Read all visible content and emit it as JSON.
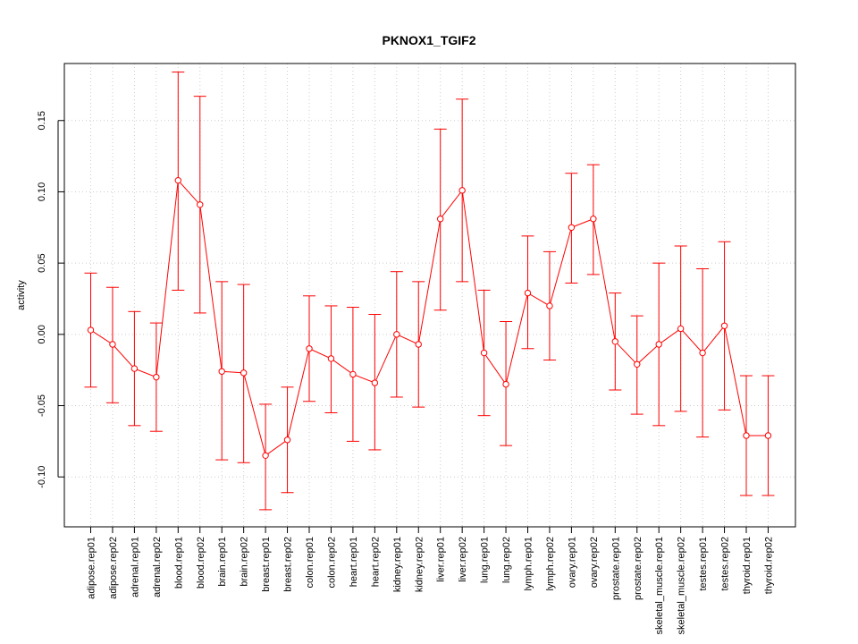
{
  "chart_data": {
    "type": "line",
    "title": "PKNOX1_TGIF2",
    "xlabel": "",
    "ylabel": "activity",
    "ylim": [
      -0.135,
      0.19
    ],
    "yticks": [
      -0.1,
      -0.05,
      0.0,
      0.05,
      0.1,
      0.15
    ],
    "ytick_labels": [
      "-0.10",
      "-0.05",
      "0.00",
      "0.05",
      "0.10",
      "0.15"
    ],
    "grid": true,
    "color": "#ff0000",
    "categories": [
      "adipose.rep01",
      "adipose.rep02",
      "adrenal.rep01",
      "adrenal.rep02",
      "blood.rep01",
      "blood.rep02",
      "brain.rep01",
      "brain.rep02",
      "breast.rep01",
      "breast.rep02",
      "colon.rep01",
      "colon.rep02",
      "heart.rep01",
      "heart.rep02",
      "kidney.rep01",
      "kidney.rep02",
      "liver.rep01",
      "liver.rep02",
      "lung.rep01",
      "lung.rep02",
      "lymph.rep01",
      "lymph.rep02",
      "ovary.rep01",
      "ovary.rep02",
      "prostate.rep01",
      "prostate.rep02",
      "skeletal_muscle.rep01",
      "skeletal_muscle.rep02",
      "testes.rep01",
      "testes.rep02",
      "thyroid.rep01",
      "thyroid.rep02"
    ],
    "values": [
      0.003,
      -0.007,
      -0.024,
      -0.03,
      0.108,
      0.091,
      -0.026,
      -0.027,
      -0.085,
      -0.074,
      -0.01,
      -0.017,
      -0.028,
      -0.034,
      0.0,
      -0.007,
      0.081,
      0.101,
      -0.013,
      -0.035,
      0.029,
      0.02,
      0.075,
      0.081,
      -0.005,
      -0.021,
      -0.007,
      0.004,
      -0.013,
      0.006,
      -0.071,
      -0.071
    ],
    "upper": [
      0.043,
      0.033,
      0.016,
      0.008,
      0.184,
      0.167,
      0.037,
      0.035,
      -0.049,
      -0.037,
      0.027,
      0.02,
      0.019,
      0.014,
      0.044,
      0.037,
      0.144,
      0.165,
      0.031,
      0.009,
      0.069,
      0.058,
      0.113,
      0.119,
      0.029,
      0.013,
      0.05,
      0.062,
      0.046,
      0.065,
      -0.029,
      -0.029
    ],
    "lower": [
      -0.037,
      -0.048,
      -0.064,
      -0.068,
      0.031,
      0.015,
      -0.088,
      -0.09,
      -0.123,
      -0.111,
      -0.047,
      -0.055,
      -0.075,
      -0.081,
      -0.044,
      -0.051,
      0.017,
      0.037,
      -0.057,
      -0.078,
      -0.01,
      -0.018,
      0.036,
      0.042,
      -0.039,
      -0.056,
      -0.064,
      -0.054,
      -0.072,
      -0.053,
      -0.113,
      -0.113
    ]
  }
}
